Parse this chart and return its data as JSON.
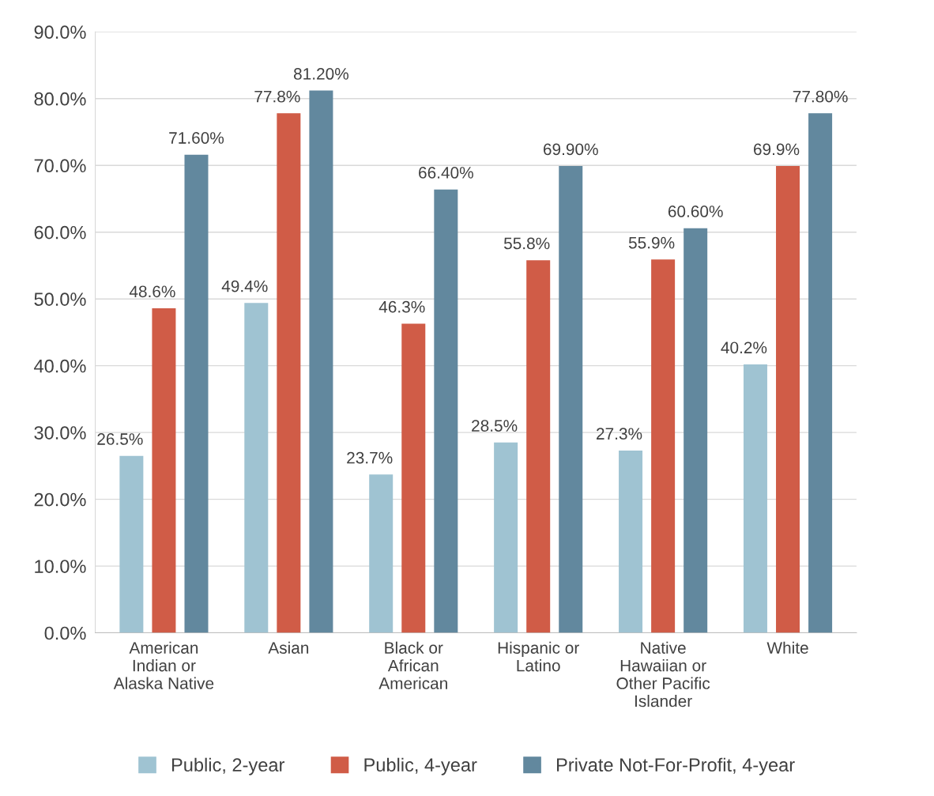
{
  "chart_data": {
    "type": "bar",
    "categories": [
      "American\nIndian or\nAlaska Native",
      "Asian",
      "Black or\nAfrican\nAmerican",
      "Hispanic or\nLatino",
      "Native\nHawaiian or\nOther Pacific\nIslander",
      "White"
    ],
    "series": [
      {
        "name": "Public, 2-year",
        "color": "#9fc3d2",
        "values": [
          26.5,
          49.4,
          23.7,
          28.5,
          27.3,
          40.2
        ],
        "value_labels": [
          "26.5%",
          "49.4%",
          "23.7%",
          "28.5%",
          "27.3%",
          "40.2%"
        ]
      },
      {
        "name": "Public, 4-year",
        "color": "#d05c47",
        "values": [
          48.6,
          77.8,
          46.3,
          55.8,
          55.9,
          69.9
        ],
        "value_labels": [
          "48.6%",
          "77.8%",
          "46.3%",
          "55.8%",
          "55.9%",
          "69.9%"
        ]
      },
      {
        "name": "Private Not-For-Profit, 4-year",
        "color": "#62889e",
        "values": [
          71.6,
          81.2,
          66.4,
          69.9,
          60.6,
          77.8
        ],
        "value_labels": [
          "71.60%",
          "81.20%",
          "66.40%",
          "69.90%",
          "60.60%",
          "77.80%"
        ]
      }
    ],
    "ylim": [
      0,
      90
    ],
    "yticks": [
      {
        "value": 0,
        "label": "0.0%"
      },
      {
        "value": 10,
        "label": "10.0%"
      },
      {
        "value": 20,
        "label": "20.0%"
      },
      {
        "value": 30,
        "label": "30.0%"
      },
      {
        "value": 40,
        "label": "40.0%"
      },
      {
        "value": 50,
        "label": "50.0%"
      },
      {
        "value": 60,
        "label": "60.0%"
      },
      {
        "value": 70,
        "label": "70.0%"
      },
      {
        "value": 80,
        "label": "80.0%"
      },
      {
        "value": 90,
        "label": "90.0%"
      }
    ],
    "grid": "y",
    "legend": "bottom"
  }
}
